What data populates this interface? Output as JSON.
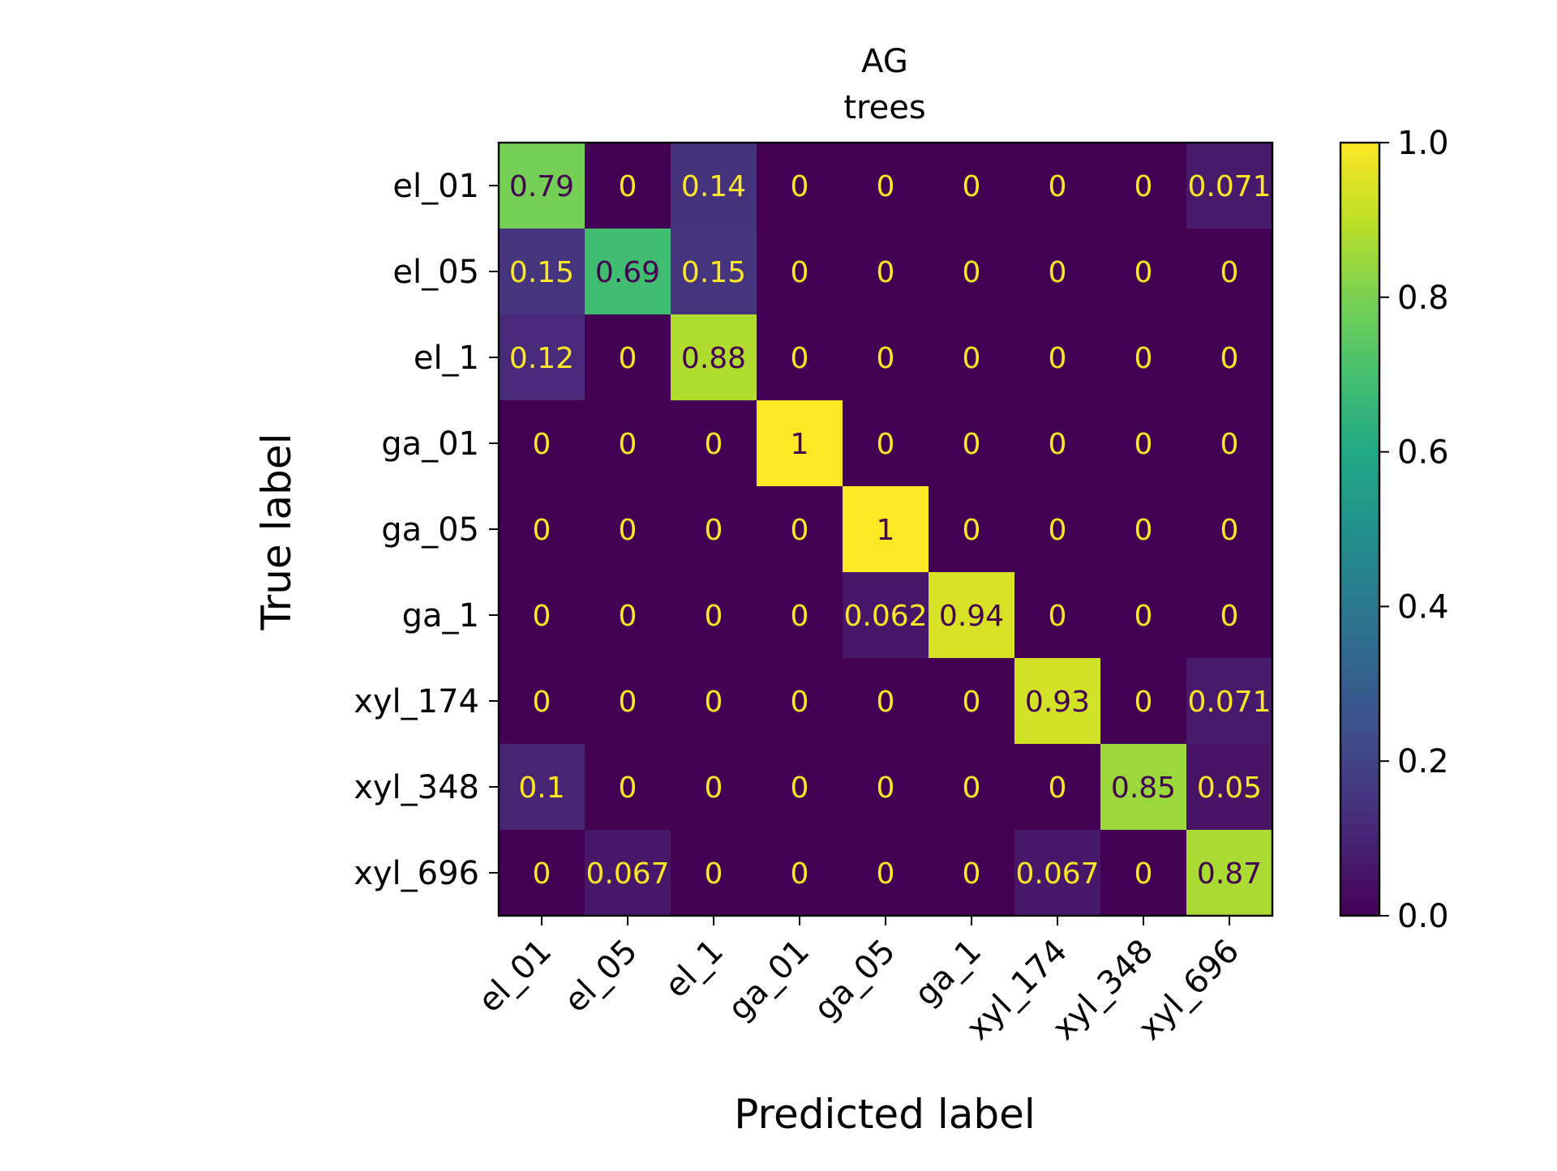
{
  "chart_data": {
    "type": "heatmap",
    "title_lines": [
      "AG",
      "trees"
    ],
    "xlabel": "Predicted label",
    "ylabel": "True label",
    "x_categories": [
      "el_01",
      "el_05",
      "el_1",
      "ga_01",
      "ga_05",
      "ga_1",
      "xyl_174",
      "xyl_348",
      "xyl_696"
    ],
    "y_categories": [
      "el_01",
      "el_05",
      "el_1",
      "ga_01",
      "ga_05",
      "ga_1",
      "xyl_174",
      "xyl_348",
      "xyl_696"
    ],
    "values": [
      [
        0.79,
        0,
        0.14,
        0,
        0,
        0,
        0,
        0,
        0.071
      ],
      [
        0.15,
        0.69,
        0.15,
        0,
        0,
        0,
        0,
        0,
        0
      ],
      [
        0.12,
        0,
        0.88,
        0,
        0,
        0,
        0,
        0,
        0
      ],
      [
        0,
        0,
        0,
        1,
        0,
        0,
        0,
        0,
        0
      ],
      [
        0,
        0,
        0,
        0,
        1,
        0,
        0,
        0,
        0
      ],
      [
        0,
        0,
        0,
        0,
        0.062,
        0.94,
        0,
        0,
        0
      ],
      [
        0,
        0,
        0,
        0,
        0,
        0,
        0.93,
        0,
        0.071
      ],
      [
        0.1,
        0,
        0,
        0,
        0,
        0,
        0,
        0.85,
        0.05
      ],
      [
        0,
        0.067,
        0,
        0,
        0,
        0,
        0.067,
        0,
        0.87
      ]
    ],
    "labels": [
      [
        "0.79",
        "0",
        "0.14",
        "0",
        "0",
        "0",
        "0",
        "0",
        "0.071"
      ],
      [
        "0.15",
        "0.69",
        "0.15",
        "0",
        "0",
        "0",
        "0",
        "0",
        "0"
      ],
      [
        "0.12",
        "0",
        "0.88",
        "0",
        "0",
        "0",
        "0",
        "0",
        "0"
      ],
      [
        "0",
        "0",
        "0",
        "1",
        "0",
        "0",
        "0",
        "0",
        "0"
      ],
      [
        "0",
        "0",
        "0",
        "0",
        "1",
        "0",
        "0",
        "0",
        "0"
      ],
      [
        "0",
        "0",
        "0",
        "0",
        "0.062",
        "0.94",
        "0",
        "0",
        "0"
      ],
      [
        "0",
        "0",
        "0",
        "0",
        "0",
        "0",
        "0.93",
        "0",
        "0.071"
      ],
      [
        "0.1",
        "0",
        "0",
        "0",
        "0",
        "0",
        "0",
        "0.85",
        "0.05"
      ],
      [
        "0",
        "0.067",
        "0",
        "0",
        "0",
        "0",
        "0.067",
        "0",
        "0.87"
      ]
    ],
    "colorbar": {
      "range": [
        0.0,
        1.0
      ],
      "ticks": [
        0.0,
        0.2,
        0.4,
        0.6,
        0.8,
        1.0
      ],
      "tick_labels": [
        "0.0",
        "0.2",
        "0.4",
        "0.6",
        "0.8",
        "1.0"
      ]
    },
    "colormap": "viridis",
    "text_color_light": "#fde725",
    "text_color_dark": "#440154"
  }
}
